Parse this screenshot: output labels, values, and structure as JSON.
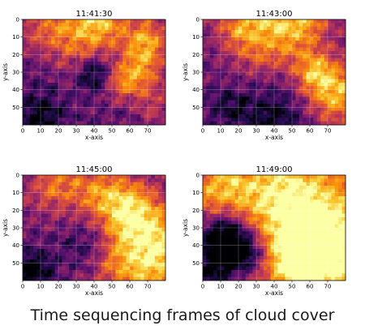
{
  "caption": "Time sequencing frames of cloud cover",
  "chart_data": [
    {
      "type": "heatmap",
      "title": "11:41:30",
      "xlabel": "x-axis",
      "ylabel": "y-axis",
      "xlim": [
        0,
        80
      ],
      "ylim": [
        60,
        0
      ],
      "xticks": [
        "0",
        "10",
        "20",
        "30",
        "40",
        "50",
        "60",
        "70"
      ],
      "yticks": [
        "0",
        "10",
        "20",
        "30",
        "40",
        "50"
      ],
      "colormap": "inferno",
      "grid": true,
      "cover_trend": "bright cloud band across upper half and a dark clear patch near x 40, y 30"
    },
    {
      "type": "heatmap",
      "title": "11:43:00",
      "xlabel": "x-axis",
      "ylabel": "y-axis",
      "xlim": [
        0,
        80
      ],
      "ylim": [
        60,
        0
      ],
      "xticks": [
        "0",
        "10",
        "20",
        "30",
        "40",
        "50",
        "60",
        "70"
      ],
      "yticks": [
        "0",
        "10",
        "20",
        "30",
        "40",
        "50"
      ],
      "colormap": "inferno",
      "grid": true,
      "cover_trend": "bright cloud at top and growing bright region at lower right"
    },
    {
      "type": "heatmap",
      "title": "11:45:00",
      "xlabel": "x-axis",
      "ylabel": "y-axis",
      "xlim": [
        0,
        80
      ],
      "ylim": [
        60,
        0
      ],
      "xticks": [
        "0",
        "10",
        "20",
        "30",
        "40",
        "50",
        "60",
        "70"
      ],
      "yticks": [
        "0",
        "10",
        "20",
        "30",
        "40",
        "50"
      ],
      "colormap": "inferno",
      "grid": true,
      "cover_trend": "large bright region on right side, dark patches at lower left"
    },
    {
      "type": "heatmap",
      "title": "11:49:00",
      "xlabel": "x-axis",
      "ylabel": "y-axis",
      "xlim": [
        0,
        80
      ],
      "ylim": [
        60,
        0
      ],
      "xticks": [
        "0",
        "10",
        "20",
        "30",
        "40",
        "50",
        "60",
        "70"
      ],
      "yticks": [
        "0",
        "10",
        "20",
        "30",
        "40",
        "50"
      ],
      "colormap": "inferno",
      "grid": true,
      "cover_trend": "mostly bright cloud cover with a dark clear region at lower left"
    }
  ]
}
